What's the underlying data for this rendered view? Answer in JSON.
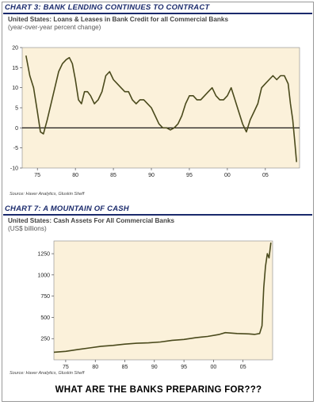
{
  "footer": "WHAT ARE THE BANKS PREPARING FOR???",
  "colors": {
    "line": "#4a4a1c",
    "plot_bg": "#fbf1da",
    "title": "#1a2a6c"
  },
  "chart_data": [
    {
      "type": "line",
      "title": "CHART 3: BANK LENDING CONTINUES TO CONTRACT",
      "subtitle": "United States: Loans & Leases in Bank Credit for all Commercial Banks",
      "ylabel": "(year-over-year percent change)",
      "source": "Source: Haver Analytics, Gluskin Sheff",
      "xlim": [
        1973,
        2009.5
      ],
      "ylim": [
        -10,
        20
      ],
      "yticks": [
        20,
        15,
        10,
        5,
        0,
        -5,
        -10
      ],
      "ytick_labels": [
        "20",
        "15",
        "10",
        "5",
        "0",
        "-5",
        "-10"
      ],
      "xticks": [
        1975,
        1980,
        1985,
        1990,
        1995,
        2000,
        2005
      ],
      "xtick_labels": [
        "75",
        "80",
        "85",
        "90",
        "95",
        "00",
        "05"
      ],
      "x": [
        1973.5,
        1974,
        1974.5,
        1975,
        1975.4,
        1975.8,
        1976.3,
        1976.8,
        1977.3,
        1977.8,
        1978.3,
        1978.8,
        1979.2,
        1979.6,
        1980,
        1980.4,
        1980.8,
        1981.2,
        1981.6,
        1982,
        1982.5,
        1983,
        1983.5,
        1984,
        1984.5,
        1985,
        1985.5,
        1986,
        1986.5,
        1987,
        1987.5,
        1988,
        1988.5,
        1989,
        1989.5,
        1990,
        1990.5,
        1991,
        1991.5,
        1992,
        1992.5,
        1993,
        1993.5,
        1994,
        1994.5,
        1995,
        1995.5,
        1996,
        1996.5,
        1997,
        1997.5,
        1998,
        1998.5,
        1999,
        1999.5,
        2000,
        2000.5,
        2001,
        2001.5,
        2002,
        2002.5,
        2003,
        2003.5,
        2004,
        2004.5,
        2005,
        2005.5,
        2006,
        2006.5,
        2007,
        2007.5,
        2008,
        2008.3,
        2008.6,
        2008.9,
        2009.1
      ],
      "y": [
        18,
        13,
        10,
        4,
        -1,
        -1.5,
        2,
        6,
        10,
        14,
        16,
        17,
        17.5,
        16,
        12,
        7,
        6,
        9,
        9,
        8,
        6,
        7,
        9,
        13,
        14,
        12,
        11,
        10,
        9,
        9,
        7,
        6,
        7,
        7,
        6,
        5,
        3,
        1,
        0,
        0,
        -0.5,
        0,
        1,
        3,
        6,
        8,
        8,
        7,
        7,
        8,
        9,
        10,
        8,
        7,
        7,
        8,
        10,
        7,
        4,
        1,
        -1,
        2,
        4,
        6,
        10,
        11,
        12,
        13,
        12,
        13,
        13,
        11,
        6,
        2,
        -4,
        -8.5
      ]
    },
    {
      "type": "line",
      "title": "CHART 7: A MOUNTAIN OF CASH",
      "subtitle": "United States: Cash Assets For All Commercial Banks",
      "ylabel": "(US$ billions)",
      "source": "Source: Haver Analytics, Gluskin Sheff",
      "xlim": [
        1973,
        2010
      ],
      "ylim": [
        0,
        1400
      ],
      "yticks": [
        1250,
        1000,
        750,
        500,
        250
      ],
      "ytick_labels": [
        "1250",
        "1000",
        "750",
        "500",
        "250"
      ],
      "xticks": [
        1975,
        1980,
        1985,
        1990,
        1995,
        2000,
        2005
      ],
      "xtick_labels": [
        "75",
        "80",
        "85",
        "90",
        "95",
        "00",
        "05"
      ],
      "x": [
        1973,
        1975,
        1977,
        1979,
        1981,
        1983,
        1985,
        1987,
        1989,
        1991,
        1993,
        1995,
        1997,
        1999,
        2001,
        2002,
        2004,
        2006,
        2007,
        2007.8,
        2008.2,
        2008.5,
        2008.8,
        2009.1,
        2009.4,
        2009.7
      ],
      "y": [
        90,
        100,
        120,
        140,
        160,
        170,
        185,
        195,
        200,
        210,
        230,
        240,
        260,
        275,
        300,
        320,
        310,
        305,
        300,
        310,
        400,
        850,
        1100,
        1250,
        1200,
        1380
      ]
    }
  ]
}
